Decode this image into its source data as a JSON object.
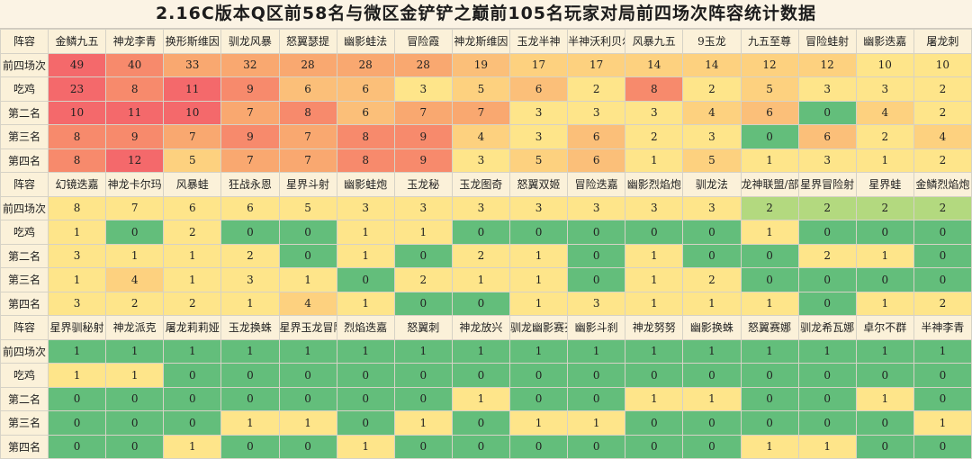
{
  "title": "2.16C版本Q区前58名与微区金铲铲之巅前105名玩家对局前四场次阵容统计数据",
  "row_labels": [
    "阵容",
    "前四场次",
    "吃鸡",
    "第二名",
    "第三名",
    "第四名"
  ],
  "colors": {
    "red": "#f4696b",
    "red_orange": "#f78a6c",
    "orange": "#f9a870",
    "light_orange": "#fbbf79",
    "yellow_orange": "#fdd17f",
    "yellow": "#fee58a",
    "light_green": "#b3d97f",
    "green": "#63be7b"
  },
  "sections": [
    {
      "names": [
        "金鳞九五",
        "神龙李青",
        "换形斯维因",
        "驯龙风暴",
        "怒翼瑟提",
        "幽影蛙法",
        "冒险霞",
        "神龙斯维因",
        "玉龙半神",
        "半神沃利贝尔",
        "风暴九五",
        "9玉龙",
        "九五至尊",
        "冒险蛙射",
        "幽影迭嘉",
        "屠龙刺"
      ],
      "top4": [
        49,
        40,
        33,
        32,
        28,
        28,
        28,
        19,
        17,
        17,
        14,
        14,
        12,
        12,
        10,
        10
      ],
      "first": [
        23,
        8,
        11,
        9,
        6,
        6,
        3,
        5,
        6,
        2,
        8,
        2,
        5,
        3,
        3,
        2
      ],
      "second": [
        10,
        11,
        10,
        7,
        8,
        6,
        7,
        7,
        3,
        3,
        3,
        4,
        6,
        0,
        4,
        2
      ],
      "third": [
        8,
        9,
        7,
        9,
        7,
        8,
        9,
        4,
        3,
        6,
        2,
        3,
        0,
        6,
        2,
        4
      ],
      "fourth": [
        8,
        12,
        5,
        7,
        7,
        8,
        9,
        3,
        5,
        6,
        1,
        5,
        1,
        3,
        1,
        2
      ]
    },
    {
      "names": [
        "幻镜迭嘉",
        "神龙卡尔玛",
        "风暴蛙",
        "狂战永恩",
        "星界斗射",
        "幽影蛙炮",
        "玉龙秘",
        "玉龙图奇",
        "怒翼双姬",
        "冒险迭嘉",
        "幽影烈焰炮",
        "驯龙法",
        "龙神联盟/部落",
        "星界冒险射",
        "星界蛙",
        "金鳞烈焰炮"
      ],
      "top4": [
        8,
        7,
        6,
        6,
        5,
        3,
        3,
        3,
        3,
        3,
        3,
        3,
        2,
        2,
        2,
        2
      ],
      "first": [
        1,
        0,
        2,
        0,
        0,
        1,
        1,
        0,
        0,
        0,
        0,
        0,
        1,
        0,
        0,
        0
      ],
      "second": [
        3,
        1,
        1,
        2,
        0,
        1,
        0,
        2,
        1,
        0,
        1,
        0,
        0,
        2,
        1,
        0
      ],
      "third": [
        1,
        4,
        1,
        3,
        1,
        0,
        2,
        1,
        1,
        0,
        1,
        2,
        0,
        0,
        0,
        0
      ],
      "fourth": [
        3,
        2,
        2,
        1,
        4,
        1,
        0,
        0,
        1,
        3,
        1,
        1,
        1,
        0,
        1,
        2
      ]
    },
    {
      "names": [
        "星界驯秘射",
        "神龙派克",
        "屠龙莉莉娅",
        "玉龙换蛛",
        "星界玉龙冒险图",
        "烈焰迭嘉",
        "怒翼刺",
        "神龙放兴",
        "驯龙幽影赛芬",
        "幽影斗刹",
        "神龙努努",
        "幽影换蛛",
        "怒翼赛娜",
        "驯龙希瓦娜",
        "卓尔不群",
        "半神李青"
      ],
      "top4": [
        1,
        1,
        1,
        1,
        1,
        1,
        1,
        1,
        1,
        1,
        1,
        1,
        1,
        1,
        1,
        1
      ],
      "first": [
        1,
        1,
        0,
        0,
        0,
        0,
        0,
        0,
        0,
        0,
        0,
        0,
        0,
        0,
        0,
        0
      ],
      "second": [
        0,
        0,
        0,
        0,
        0,
        0,
        0,
        1,
        0,
        0,
        1,
        1,
        0,
        0,
        1,
        0
      ],
      "third": [
        0,
        0,
        0,
        1,
        1,
        0,
        1,
        0,
        1,
        1,
        0,
        0,
        0,
        0,
        0,
        1
      ],
      "fourth": [
        0,
        0,
        1,
        0,
        0,
        1,
        0,
        0,
        0,
        0,
        0,
        0,
        1,
        1,
        0,
        0
      ]
    }
  ]
}
